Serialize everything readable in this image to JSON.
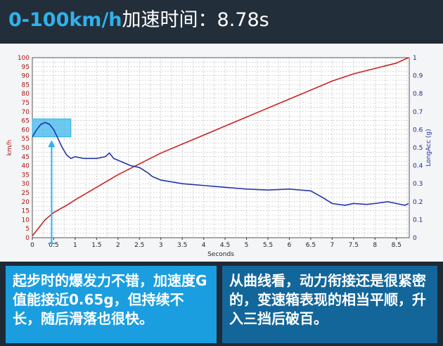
{
  "header": {
    "title_en": "0-100km/h",
    "title_cn": "加速时间：8.78s"
  },
  "chart_data": {
    "type": "line",
    "xlabel": "Seconds",
    "ylabel_left": "km/h",
    "ylabel_right": "LongAcc (g)",
    "xlim": [
      0,
      8.8
    ],
    "ylim_left": [
      0,
      100
    ],
    "ylim_right": [
      0,
      1
    ],
    "grid": true,
    "x_ticks": [
      "0",
      "0.5",
      "1",
      "1.5",
      "2",
      "2.5",
      "3",
      "3.5",
      "4",
      "4.5",
      "5",
      "5.5",
      "6",
      "6.5",
      "7",
      "7.5",
      "8",
      "8.5"
    ],
    "y_left_ticks": [
      "0",
      "5",
      "10",
      "15",
      "20",
      "25",
      "30",
      "35",
      "40",
      "45",
      "50",
      "55",
      "60",
      "65",
      "70",
      "75",
      "80",
      "85",
      "90",
      "95",
      "100"
    ],
    "y_right_ticks": [
      "0",
      "0.1",
      "0.2",
      "0.3",
      "0.4",
      "0.5",
      "0.6",
      "0.7",
      "0.8",
      "0.9",
      "1"
    ],
    "series": [
      {
        "axis": "left",
        "color": "#cc2222",
        "x": [
          0,
          0.1,
          0.2,
          0.3,
          0.5,
          0.8,
          1,
          1.5,
          2,
          2.5,
          3,
          3.5,
          4,
          4.5,
          5,
          5.5,
          6,
          6.5,
          7,
          7.5,
          8,
          8.5,
          8.78
        ],
        "values": [
          1,
          4,
          7,
          10,
          14,
          18,
          21,
          28,
          35,
          41,
          47,
          52,
          57,
          62,
          67,
          72,
          77,
          82,
          87,
          91,
          94,
          97,
          100
        ]
      },
      {
        "axis": "right",
        "color": "#2233aa",
        "x": [
          0,
          0.1,
          0.2,
          0.3,
          0.4,
          0.5,
          0.6,
          0.7,
          0.8,
          0.9,
          1,
          1.2,
          1.5,
          1.7,
          1.8,
          1.9,
          2,
          2.1,
          2.2,
          2.3,
          2.5,
          2.7,
          2.8,
          3,
          3.5,
          4,
          4.5,
          5,
          5.5,
          6,
          6.5,
          6.8,
          7,
          7.3,
          7.5,
          7.8,
          8,
          8.3,
          8.5,
          8.7,
          8.78
        ],
        "values": [
          0.56,
          0.6,
          0.63,
          0.64,
          0.63,
          0.6,
          0.55,
          0.5,
          0.46,
          0.44,
          0.45,
          0.44,
          0.44,
          0.45,
          0.47,
          0.44,
          0.43,
          0.42,
          0.41,
          0.4,
          0.39,
          0.36,
          0.34,
          0.32,
          0.3,
          0.29,
          0.28,
          0.27,
          0.265,
          0.27,
          0.26,
          0.22,
          0.19,
          0.18,
          0.19,
          0.185,
          0.19,
          0.2,
          0.19,
          0.18,
          0.19
        ]
      }
    ]
  },
  "annotation": {
    "highlight_color": "#2fb2ea"
  },
  "captions": {
    "left": "起步时的爆发力不错，加速度G值能接近0.65g，但持续不长，随后滑落也很快。",
    "right": "从曲线看，动力衔接还是很紧密的，变速箱表现的相当平顺，升入三挡后破百。"
  }
}
